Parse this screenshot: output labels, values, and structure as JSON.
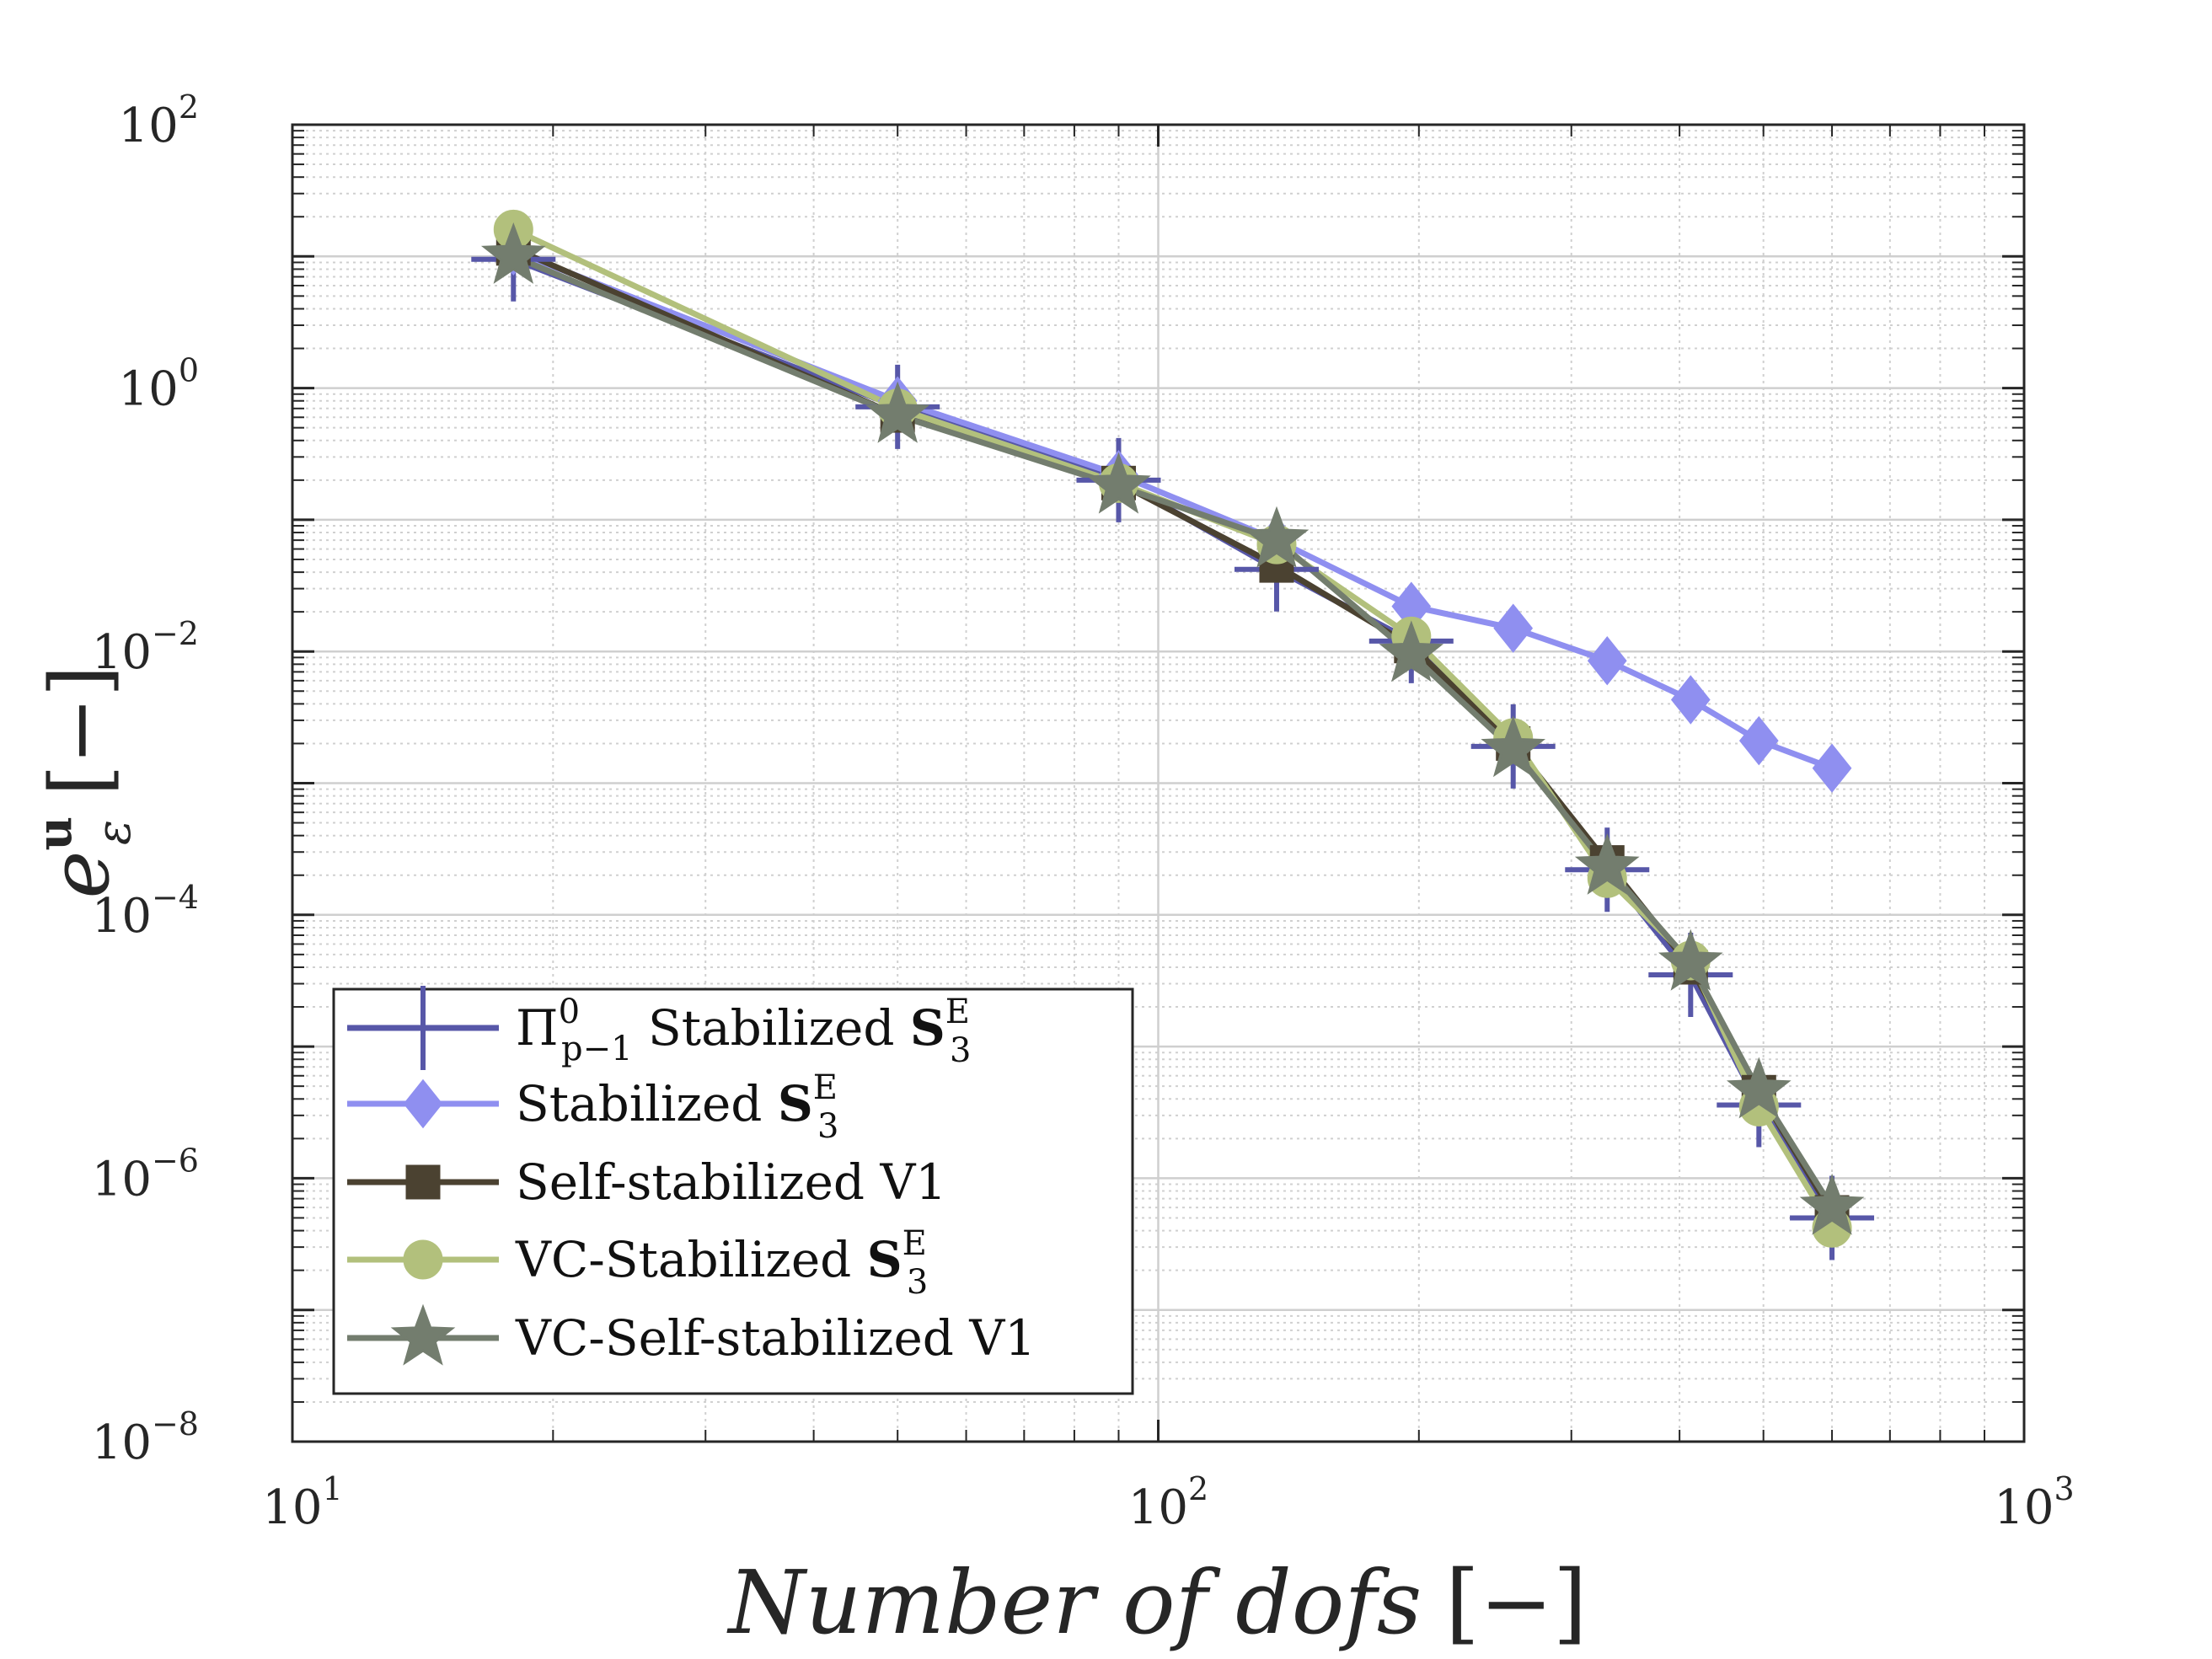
{
  "chart_data": {
    "type": "line",
    "xscale": "log",
    "yscale": "log",
    "xlim": [
      10,
      1000
    ],
    "ylim": [
      1e-08,
      100
    ],
    "xlabel": "Number of dofs",
    "xlabel_unit": "[−]",
    "ylabel": "e",
    "ylabel_sup": "u",
    "ylabel_sub": "ε",
    "ylabel_unit": "[−]",
    "grid": true,
    "legend_position": "bottom-left",
    "x_ticks": [
      {
        "value": 10,
        "base": "10",
        "exp": "1"
      },
      {
        "value": 100,
        "base": "10",
        "exp": "2"
      },
      {
        "value": 1000,
        "base": "10",
        "exp": "3"
      }
    ],
    "y_ticks": [
      {
        "value": 1e-08,
        "base": "10",
        "exp": "−8"
      },
      {
        "value": 1e-06,
        "base": "10",
        "exp": "−6"
      },
      {
        "value": 0.0001,
        "base": "10",
        "exp": "−4"
      },
      {
        "value": 0.01,
        "base": "10",
        "exp": "−2"
      },
      {
        "value": 1,
        "base": "10",
        "exp": "0"
      },
      {
        "value": 100,
        "base": "10",
        "exp": "2"
      }
    ],
    "series": [
      {
        "name": "Π⁰ₚ₋₁ Stabilized S₃ᴱ",
        "legend": {
          "pre": "Π",
          "pre_sup": "0",
          "pre_sub": "p−1",
          "text": " Stabilized ",
          "bold": "S",
          "sub": "3",
          "sup": "E"
        },
        "color": "#5757a8",
        "marker": "plus",
        "x": [
          18,
          50,
          90,
          137,
          196,
          257,
          330,
          412,
          494,
          600
        ],
        "y": [
          9.5,
          0.72,
          0.2,
          0.042,
          0.012,
          0.0019,
          0.00022,
          3.5e-05,
          3.6e-06,
          5e-07
        ]
      },
      {
        "name": "Stabilized S₃ᴱ",
        "legend": {
          "pre": "",
          "pre_sup": "",
          "pre_sub": "",
          "text": "Stabilized ",
          "bold": "S",
          "sub": "3",
          "sup": "E"
        },
        "color": "#8f8ff0",
        "marker": "diamond",
        "x": [
          18,
          50,
          90,
          137,
          196,
          257,
          330,
          412,
          494,
          600
        ],
        "y": [
          11,
          0.8,
          0.22,
          0.07,
          0.022,
          0.015,
          0.0085,
          0.0043,
          0.0021,
          0.0013
        ]
      },
      {
        "name": "Self-stabilized V1",
        "legend": {
          "pre": "",
          "pre_sup": "",
          "pre_sub": "",
          "text": "Self-stabilized V1",
          "bold": "",
          "sub": "",
          "sup": ""
        },
        "color": "#4b4231",
        "marker": "square",
        "x": [
          18,
          50,
          90,
          137,
          196,
          257,
          330,
          412,
          494,
          600
        ],
        "y": [
          11.5,
          0.62,
          0.19,
          0.045,
          0.011,
          0.002,
          0.00025,
          4e-05,
          4.5e-06,
          5.5e-07
        ]
      },
      {
        "name": "VC-Stabilized S₃ᴱ",
        "legend": {
          "pre": "",
          "pre_sup": "",
          "pre_sub": "",
          "text": "VC-Stabilized ",
          "bold": "S",
          "sub": "3",
          "sup": "E"
        },
        "color": "#b2c07c",
        "marker": "circle",
        "x": [
          18,
          50,
          90,
          137,
          196,
          257,
          330,
          412,
          494,
          600
        ],
        "y": [
          16,
          0.7,
          0.19,
          0.065,
          0.013,
          0.0022,
          0.00019,
          4.5e-05,
          3.5e-06,
          4.2e-07
        ]
      },
      {
        "name": "VC-Self-stabilized V1",
        "legend": {
          "pre": "",
          "pre_sup": "",
          "pre_sub": "",
          "text": "VC-Self-stabilized V1",
          "bold": "",
          "sub": "",
          "sup": ""
        },
        "color": "#737d6e",
        "marker": "star",
        "x": [
          18,
          50,
          90,
          137,
          196,
          257,
          330,
          412,
          494,
          600
        ],
        "y": [
          10,
          0.62,
          0.18,
          0.07,
          0.0095,
          0.0018,
          0.00023,
          4.3e-05,
          4.6e-06,
          6e-07
        ]
      }
    ]
  }
}
